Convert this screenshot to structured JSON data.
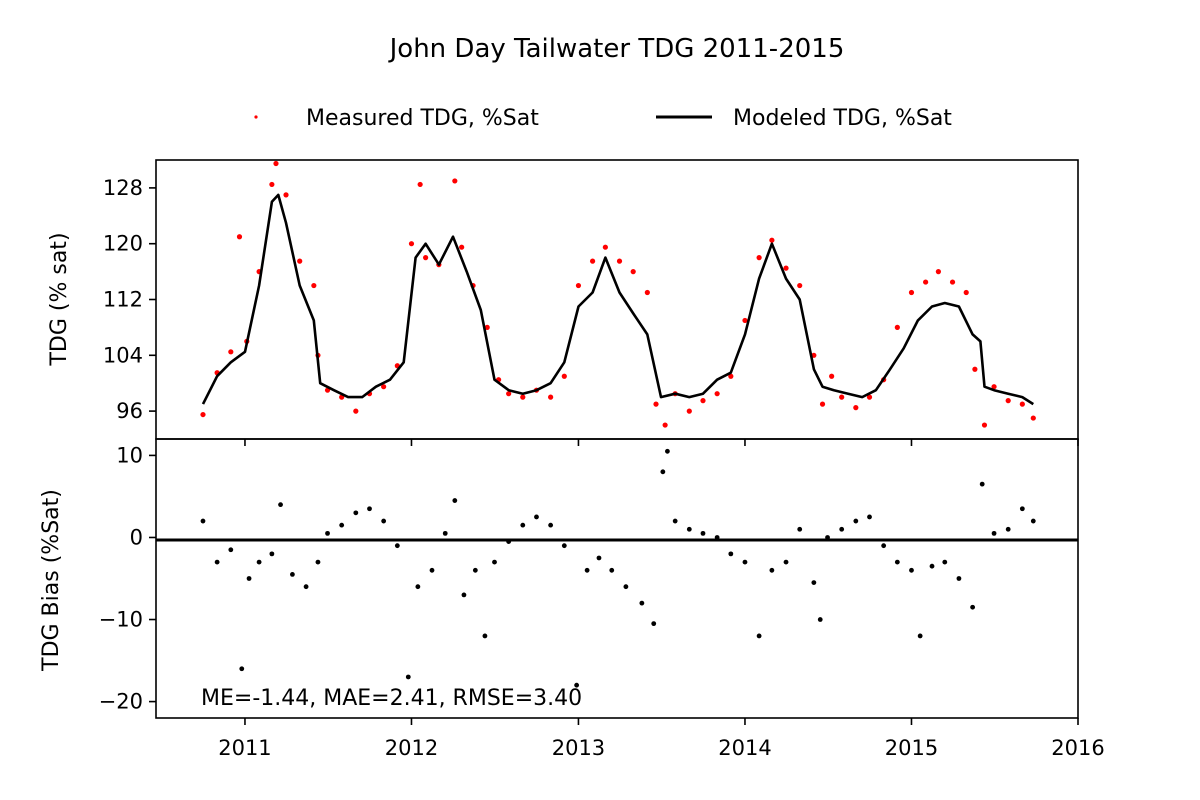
{
  "chart_data": [
    {
      "type": "scatter",
      "title": "John Day Tailwater TDG 2011-2015",
      "ylabel": "TDG (% sat)",
      "xlabel": "",
      "xlim": [
        "2010-06-20",
        "2016-01-01"
      ],
      "ylim": [
        92,
        132
      ],
      "x_tick_labels": [
        "2011",
        "2012",
        "2013",
        "2014",
        "2015",
        "2016"
      ],
      "y_tick_labels": [
        "96",
        "104",
        "112",
        "120",
        "128"
      ],
      "y_ticks": [
        96,
        104,
        112,
        120,
        128
      ],
      "legend": {
        "placement": "top-center",
        "entries": [
          "Measured TDG, %Sat",
          "Modeled TDG, %Sat"
        ]
      },
      "series": [
        {
          "name": "Measured TDG, %Sat",
          "style": "points",
          "color": "#ff0000",
          "points": [
            [
              "2010-10-01",
              95.5
            ],
            [
              "2010-11-01",
              101.5
            ],
            [
              "2010-12-01",
              104.5
            ],
            [
              "2010-12-20",
              121.0
            ],
            [
              "2011-01-05",
              106.0
            ],
            [
              "2011-02-01",
              116.0
            ],
            [
              "2011-03-01",
              128.5
            ],
            [
              "2011-03-10",
              131.5
            ],
            [
              "2011-04-01",
              127.0
            ],
            [
              "2011-05-01",
              117.5
            ],
            [
              "2011-06-01",
              114.0
            ],
            [
              "2011-06-10",
              104.0
            ],
            [
              "2011-07-01",
              99.0
            ],
            [
              "2011-08-01",
              98.0
            ],
            [
              "2011-09-01",
              96.0
            ],
            [
              "2011-10-01",
              98.5
            ],
            [
              "2011-11-01",
              99.5
            ],
            [
              "2011-12-01",
              102.5
            ],
            [
              "2012-01-01",
              120.0
            ],
            [
              "2012-01-20",
              128.5
            ],
            [
              "2012-02-01",
              118.0
            ],
            [
              "2012-03-01",
              117.0
            ],
            [
              "2012-04-05",
              129.0
            ],
            [
              "2012-04-20",
              119.5
            ],
            [
              "2012-05-15",
              114.0
            ],
            [
              "2012-06-15",
              108.0
            ],
            [
              "2012-07-10",
              100.5
            ],
            [
              "2012-08-01",
              98.5
            ],
            [
              "2012-09-01",
              98.0
            ],
            [
              "2012-10-01",
              99.0
            ],
            [
              "2012-11-01",
              98.0
            ],
            [
              "2012-12-01",
              101.0
            ],
            [
              "2013-01-01",
              114.0
            ],
            [
              "2013-02-01",
              117.5
            ],
            [
              "2013-03-01",
              119.5
            ],
            [
              "2013-04-01",
              117.5
            ],
            [
              "2013-05-01",
              116.0
            ],
            [
              "2013-06-01",
              113.0
            ],
            [
              "2013-06-20",
              97.0
            ],
            [
              "2013-07-10",
              94.0
            ],
            [
              "2013-08-01",
              98.5
            ],
            [
              "2013-09-01",
              96.0
            ],
            [
              "2013-10-01",
              97.5
            ],
            [
              "2013-11-01",
              98.5
            ],
            [
              "2013-12-01",
              101.0
            ],
            [
              "2014-01-01",
              109.0
            ],
            [
              "2014-02-01",
              118.0
            ],
            [
              "2014-03-01",
              120.5
            ],
            [
              "2014-04-01",
              116.5
            ],
            [
              "2014-05-01",
              114.0
            ],
            [
              "2014-06-01",
              104.0
            ],
            [
              "2014-06-20",
              97.0
            ],
            [
              "2014-07-10",
              101.0
            ],
            [
              "2014-08-01",
              98.0
            ],
            [
              "2014-09-01",
              96.5
            ],
            [
              "2014-10-01",
              98.0
            ],
            [
              "2014-11-01",
              100.5
            ],
            [
              "2014-12-01",
              108.0
            ],
            [
              "2015-01-01",
              113.0
            ],
            [
              "2015-02-01",
              114.5
            ],
            [
              "2015-03-01",
              116.0
            ],
            [
              "2015-04-01",
              114.5
            ],
            [
              "2015-05-01",
              113.0
            ],
            [
              "2015-05-20",
              102.0
            ],
            [
              "2015-06-10",
              94.0
            ],
            [
              "2015-07-01",
              99.5
            ],
            [
              "2015-08-01",
              97.5
            ],
            [
              "2015-09-01",
              97.0
            ],
            [
              "2015-09-25",
              95.0
            ]
          ]
        },
        {
          "name": "Modeled TDG, %Sat",
          "style": "line",
          "color": "#000000",
          "points": [
            [
              "2010-10-01",
              97.0
            ],
            [
              "2010-11-01",
              101.0
            ],
            [
              "2010-12-01",
              103.0
            ],
            [
              "2011-01-01",
              104.5
            ],
            [
              "2011-02-01",
              114.0
            ],
            [
              "2011-03-01",
              126.0
            ],
            [
              "2011-03-15",
              127.0
            ],
            [
              "2011-04-01",
              123.0
            ],
            [
              "2011-05-01",
              114.0
            ],
            [
              "2011-06-01",
              109.0
            ],
            [
              "2011-06-15",
              100.0
            ],
            [
              "2011-07-15",
              99.0
            ],
            [
              "2011-08-15",
              98.0
            ],
            [
              "2011-09-15",
              98.0
            ],
            [
              "2011-10-15",
              99.5
            ],
            [
              "2011-11-15",
              100.5
            ],
            [
              "2011-12-15",
              103.0
            ],
            [
              "2012-01-10",
              118.0
            ],
            [
              "2012-02-01",
              120.0
            ],
            [
              "2012-03-01",
              117.0
            ],
            [
              "2012-04-01",
              121.0
            ],
            [
              "2012-05-01",
              116.0
            ],
            [
              "2012-06-01",
              110.5
            ],
            [
              "2012-07-01",
              100.5
            ],
            [
              "2012-08-01",
              99.0
            ],
            [
              "2012-09-01",
              98.5
            ],
            [
              "2012-10-01",
              99.0
            ],
            [
              "2012-11-01",
              100.0
            ],
            [
              "2012-12-01",
              103.0
            ],
            [
              "2013-01-01",
              111.0
            ],
            [
              "2013-02-01",
              113.0
            ],
            [
              "2013-03-01",
              118.0
            ],
            [
              "2013-04-01",
              113.0
            ],
            [
              "2013-05-01",
              110.0
            ],
            [
              "2013-06-01",
              107.0
            ],
            [
              "2013-07-01",
              98.0
            ],
            [
              "2013-08-01",
              98.5
            ],
            [
              "2013-09-01",
              98.0
            ],
            [
              "2013-10-01",
              98.5
            ],
            [
              "2013-11-01",
              100.5
            ],
            [
              "2013-12-01",
              101.5
            ],
            [
              "2014-01-01",
              107.0
            ],
            [
              "2014-02-01",
              115.0
            ],
            [
              "2014-03-01",
              120.0
            ],
            [
              "2014-04-01",
              115.0
            ],
            [
              "2014-05-01",
              112.0
            ],
            [
              "2014-06-01",
              102.0
            ],
            [
              "2014-06-20",
              99.5
            ],
            [
              "2014-07-15",
              99.0
            ],
            [
              "2014-08-15",
              98.5
            ],
            [
              "2014-09-15",
              98.0
            ],
            [
              "2014-10-15",
              99.0
            ],
            [
              "2014-11-15",
              102.0
            ],
            [
              "2014-12-15",
              105.0
            ],
            [
              "2015-01-15",
              109.0
            ],
            [
              "2015-02-15",
              111.0
            ],
            [
              "2015-03-15",
              111.5
            ],
            [
              "2015-04-15",
              111.0
            ],
            [
              "2015-05-15",
              107.0
            ],
            [
              "2015-06-01",
              106.0
            ],
            [
              "2015-06-10",
              99.5
            ],
            [
              "2015-07-01",
              99.0
            ],
            [
              "2015-08-01",
              98.5
            ],
            [
              "2015-09-01",
              98.0
            ],
            [
              "2015-09-25",
              97.0
            ]
          ]
        }
      ]
    },
    {
      "type": "scatter",
      "ylabel": "TDG Bias (%Sat)",
      "xlabel": "",
      "xlim": [
        "2010-06-20",
        "2016-01-01"
      ],
      "ylim": [
        -22,
        12
      ],
      "x_tick_labels": [
        "2011",
        "2012",
        "2013",
        "2014",
        "2015",
        "2016"
      ],
      "y_tick_labels": [
        "10",
        "0",
        "−10",
        "−20"
      ],
      "y_ticks": [
        10,
        0,
        -10,
        -20
      ],
      "zero_line": true,
      "annotation": "ME=-1.44, MAE=2.41, RMSE=3.40",
      "series": [
        {
          "style": "points",
          "color": "#000000",
          "points": [
            [
              "2010-10-01",
              2.0
            ],
            [
              "2010-11-01",
              -3.0
            ],
            [
              "2010-12-01",
              -1.5
            ],
            [
              "2010-12-25",
              -16.0
            ],
            [
              "2011-01-10",
              -5.0
            ],
            [
              "2011-02-01",
              -3.0
            ],
            [
              "2011-03-01",
              -2.0
            ],
            [
              "2011-03-20",
              4.0
            ],
            [
              "2011-04-15",
              -4.5
            ],
            [
              "2011-05-15",
              -6.0
            ],
            [
              "2011-06-10",
              -3.0
            ],
            [
              "2011-07-01",
              0.5
            ],
            [
              "2011-08-01",
              1.5
            ],
            [
              "2011-09-01",
              3.0
            ],
            [
              "2011-10-01",
              3.5
            ],
            [
              "2011-11-01",
              2.0
            ],
            [
              "2011-12-01",
              -1.0
            ],
            [
              "2011-12-25",
              -17.0
            ],
            [
              "2012-01-15",
              -6.0
            ],
            [
              "2012-02-15",
              -4.0
            ],
            [
              "2012-03-15",
              0.5
            ],
            [
              "2012-04-05",
              4.5
            ],
            [
              "2012-04-25",
              -7.0
            ],
            [
              "2012-05-20",
              -4.0
            ],
            [
              "2012-06-10",
              -12.0
            ],
            [
              "2012-07-01",
              -3.0
            ],
            [
              "2012-08-01",
              -0.5
            ],
            [
              "2012-09-01",
              1.5
            ],
            [
              "2012-10-01",
              2.5
            ],
            [
              "2012-11-01",
              1.5
            ],
            [
              "2012-12-01",
              -1.0
            ],
            [
              "2012-12-28",
              -18.0
            ],
            [
              "2013-01-20",
              -4.0
            ],
            [
              "2013-02-15",
              -2.5
            ],
            [
              "2013-03-15",
              -4.0
            ],
            [
              "2013-04-15",
              -6.0
            ],
            [
              "2013-05-20",
              -8.0
            ],
            [
              "2013-06-15",
              -10.5
            ],
            [
              "2013-07-05",
              8.0
            ],
            [
              "2013-07-15",
              10.5
            ],
            [
              "2013-08-01",
              2.0
            ],
            [
              "2013-09-01",
              1.0
            ],
            [
              "2013-10-01",
              0.5
            ],
            [
              "2013-11-01",
              0.0
            ],
            [
              "2013-12-01",
              -2.0
            ],
            [
              "2014-01-01",
              -3.0
            ],
            [
              "2014-02-01",
              -12.0
            ],
            [
              "2014-03-01",
              -4.0
            ],
            [
              "2014-04-01",
              -3.0
            ],
            [
              "2014-05-01",
              1.0
            ],
            [
              "2014-06-01",
              -5.5
            ],
            [
              "2014-06-15",
              -10.0
            ],
            [
              "2014-07-01",
              0.0
            ],
            [
              "2014-08-01",
              1.0
            ],
            [
              "2014-09-01",
              2.0
            ],
            [
              "2014-10-01",
              2.5
            ],
            [
              "2014-11-01",
              -1.0
            ],
            [
              "2014-12-01",
              -3.0
            ],
            [
              "2015-01-01",
              -4.0
            ],
            [
              "2015-01-20",
              -12.0
            ],
            [
              "2015-02-15",
              -3.5
            ],
            [
              "2015-03-15",
              -3.0
            ],
            [
              "2015-04-15",
              -5.0
            ],
            [
              "2015-05-15",
              -8.5
            ],
            [
              "2015-06-05",
              6.5
            ],
            [
              "2015-07-01",
              0.5
            ],
            [
              "2015-08-01",
              1.0
            ],
            [
              "2015-09-01",
              3.5
            ],
            [
              "2015-09-25",
              2.0
            ]
          ]
        }
      ]
    }
  ]
}
